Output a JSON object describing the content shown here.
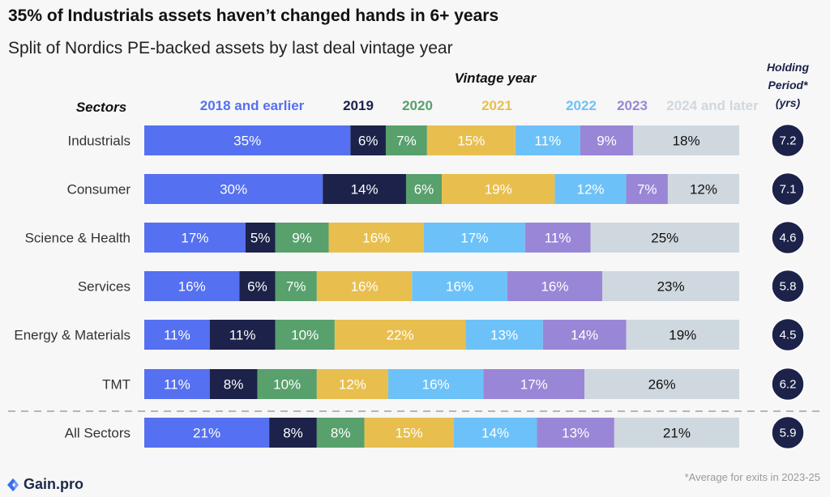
{
  "title": "35% of Industrials assets haven’t changed hands in 6+ years",
  "subtitle": "Split of Nordics PE-backed assets by last deal vintage year",
  "vintage_header": "Vintage year",
  "sectors_header": "Sectors",
  "holding_header": [
    "Holding",
    "Period*",
    "(yrs)"
  ],
  "footnote": "*Average for exits in 2023-25",
  "brand": "Gain.pro",
  "icons": {
    "brand_logo": "gain-pro-logo-icon"
  },
  "colors": {
    "2018 and earlier": "#5570f0",
    "2019": "#1c2249",
    "2020": "#58a06c",
    "2021": "#e8bf4e",
    "2022": "#6cc2f8",
    "2023": "#9a86d6",
    "2024 and later": "#cfd8df",
    "holding_circle": "#1c2249"
  },
  "chart_data": {
    "type": "bar",
    "orientation": "horizontal",
    "stacked": true,
    "percent_stacked": true,
    "categories": [
      "Industrials",
      "Consumer",
      "Science & Health",
      "Services",
      "Energy & Materials",
      "TMT",
      "All Sectors"
    ],
    "series": [
      {
        "name": "2018 and earlier",
        "values": [
          35,
          30,
          17,
          16,
          11,
          11,
          21
        ]
      },
      {
        "name": "2019",
        "values": [
          6,
          14,
          5,
          6,
          11,
          8,
          8
        ]
      },
      {
        "name": "2020",
        "values": [
          7,
          6,
          9,
          7,
          10,
          10,
          8
        ]
      },
      {
        "name": "2021",
        "values": [
          15,
          19,
          16,
          16,
          22,
          12,
          15
        ]
      },
      {
        "name": "2022",
        "values": [
          11,
          12,
          17,
          16,
          13,
          16,
          14
        ]
      },
      {
        "name": "2023",
        "values": [
          9,
          7,
          11,
          16,
          14,
          17,
          13
        ]
      },
      {
        "name": "2024 and later",
        "values": [
          18,
          12,
          25,
          23,
          19,
          26,
          21
        ]
      }
    ],
    "holding_period": [
      "7.2",
      "7.1",
      "4.6",
      "5.8",
      "4.5",
      "6.2",
      "5.9"
    ],
    "legend_position": "top",
    "grid": false
  }
}
